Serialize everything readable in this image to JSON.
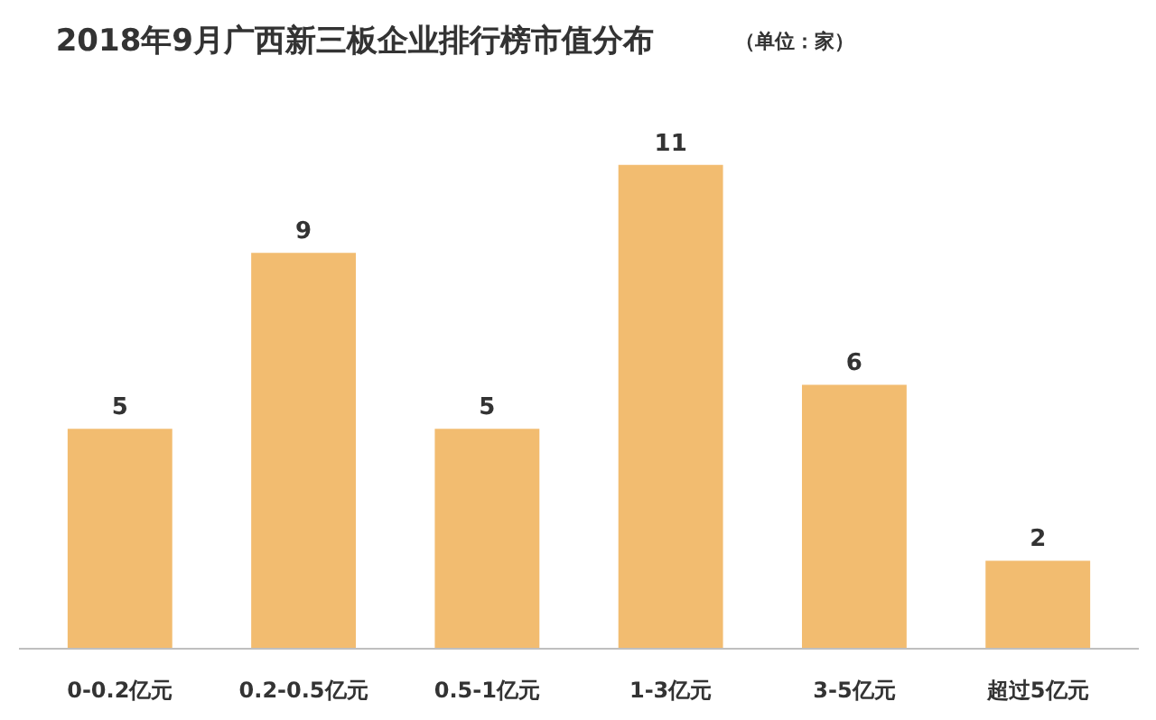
{
  "chart_data": {
    "type": "bar",
    "title": "2018年9月广西新三板企业排行榜市值分布",
    "subtitle": "（单位：家）",
    "categories": [
      "0-0.2亿元",
      "0.2-0.5亿元",
      "0.5-1亿元",
      "1-3亿元",
      "3-5亿元",
      "超过5亿元"
    ],
    "values": [
      5,
      9,
      5,
      11,
      6,
      2
    ],
    "color": "#f2bc70",
    "data_labels": true,
    "grid": false
  }
}
